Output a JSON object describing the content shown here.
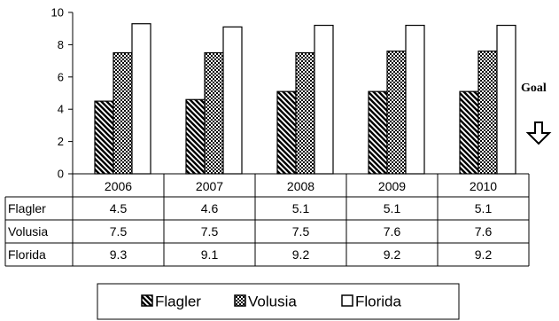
{
  "chart_data": {
    "type": "bar",
    "categories": [
      "2006",
      "2007",
      "2008",
      "2009",
      "2010"
    ],
    "series": [
      {
        "name": "Flagler",
        "values": [
          4.5,
          4.6,
          5.1,
          5.1,
          5.1
        ]
      },
      {
        "name": "Volusia",
        "values": [
          7.5,
          7.5,
          7.5,
          7.6,
          7.6
        ]
      },
      {
        "name": "Florida",
        "values": [
          9.3,
          9.1,
          9.2,
          9.2,
          9.2
        ]
      }
    ],
    "ylim": [
      0,
      10
    ],
    "yticks": [
      0,
      2,
      4,
      6,
      8,
      10
    ],
    "data_table": [
      [
        "4.5",
        "4.6",
        "5.1",
        "5.1",
        "5.1"
      ],
      [
        "7.5",
        "7.5",
        "7.5",
        "7.6",
        "7.6"
      ],
      [
        "9.3",
        "9.1",
        "9.2",
        "9.2",
        "9.2"
      ]
    ],
    "legend_position": "bottom",
    "gridlines": false,
    "series_fills": [
      "diagonal-hatch",
      "checker-pattern",
      "white"
    ],
    "annotation": {
      "text": "Goal",
      "icon": "down-arrow-icon"
    }
  }
}
